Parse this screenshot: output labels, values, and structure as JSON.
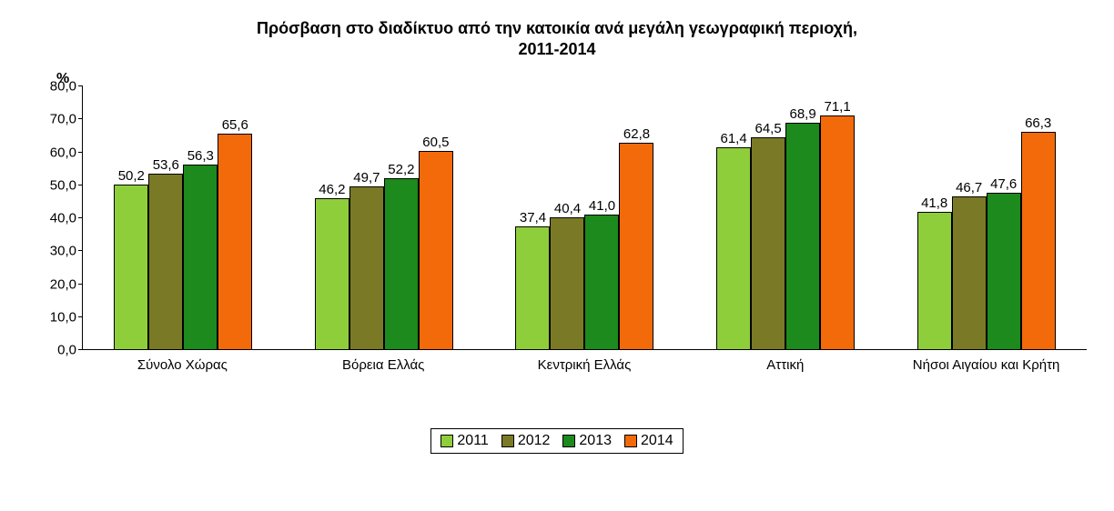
{
  "chart": {
    "type": "bar-grouped",
    "title_line1": "Πρόσβαση στο διαδίκτυο από την κατοικία ανά μεγάλη γεωγραφική περιοχή,",
    "title_line2": "2011-2014",
    "y_unit_label": "%",
    "y_axis": {
      "min": 0,
      "max": 80,
      "tick_step": 10,
      "ticks": [
        "0,0",
        "10,0",
        "20,0",
        "30,0",
        "40,0",
        "50,0",
        "60,0",
        "70,0",
        "80,0"
      ],
      "label_fontsize": 15
    },
    "series": [
      {
        "name": "2011",
        "color": "#8fce3b"
      },
      {
        "name": "2012",
        "color": "#7a7a26"
      },
      {
        "name": "2013",
        "color": "#1c8a1c"
      },
      {
        "name": "2014",
        "color": "#f26a0a"
      }
    ],
    "groups": [
      {
        "label": "Σύνολο Χώρας",
        "values": [
          50.2,
          53.6,
          56.3,
          65.6
        ],
        "value_labels": [
          "50,2",
          "53,6",
          "56,3",
          "65,6"
        ]
      },
      {
        "label": "Βόρεια Ελλάς",
        "values": [
          46.2,
          49.7,
          52.2,
          60.5
        ],
        "value_labels": [
          "46,2",
          "49,7",
          "52,2",
          "60,5"
        ]
      },
      {
        "label": "Κεντρική Ελλάς",
        "values": [
          37.4,
          40.4,
          41.0,
          62.8
        ],
        "value_labels": [
          "37,4",
          "40,4",
          "41,0",
          "62,8"
        ]
      },
      {
        "label": "Αττική",
        "values": [
          61.4,
          64.5,
          68.9,
          71.1
        ],
        "value_labels": [
          "61,4",
          "64,5",
          "68,9",
          "71,1"
        ]
      },
      {
        "label": "Νήσοι Αιγαίου και Κρήτη",
        "values": [
          41.8,
          46.7,
          47.6,
          66.3
        ],
        "value_labels": [
          "41,8",
          "46,7",
          "47,6",
          "66,3"
        ]
      }
    ],
    "bar_border_color": "#000000",
    "background_color": "#ffffff",
    "title_fontsize": 18,
    "label_fontsize": 15,
    "legend_fontsize": 16
  }
}
